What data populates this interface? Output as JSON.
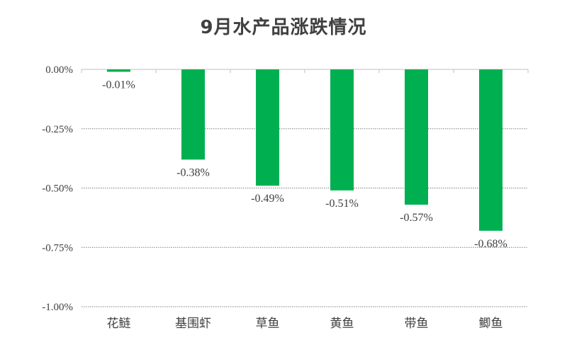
{
  "chart_data": {
    "type": "bar",
    "title": "9月水产品涨跌情况",
    "categories": [
      "花鲢",
      "基围虾",
      "草鱼",
      "黄鱼",
      "带鱼",
      "鲫鱼"
    ],
    "values": [
      -0.01,
      -0.38,
      -0.49,
      -0.51,
      -0.57,
      -0.68
    ],
    "data_labels": [
      "-0.01%",
      "-0.38%",
      "-0.49%",
      "-0.51%",
      "-0.57%",
      "-0.68%"
    ],
    "y_ticks": [
      0,
      -0.25,
      -0.5,
      -0.75,
      -1.0
    ],
    "y_tick_labels": [
      "0.00%",
      "-0.25%",
      "-0.50%",
      "-0.75%",
      "-1.00%"
    ],
    "ylim": [
      -1.0,
      0
    ],
    "xlabel": "",
    "ylabel": "",
    "grid": "dotted horizontal",
    "legend": "none",
    "bar_color": "#00b050"
  }
}
